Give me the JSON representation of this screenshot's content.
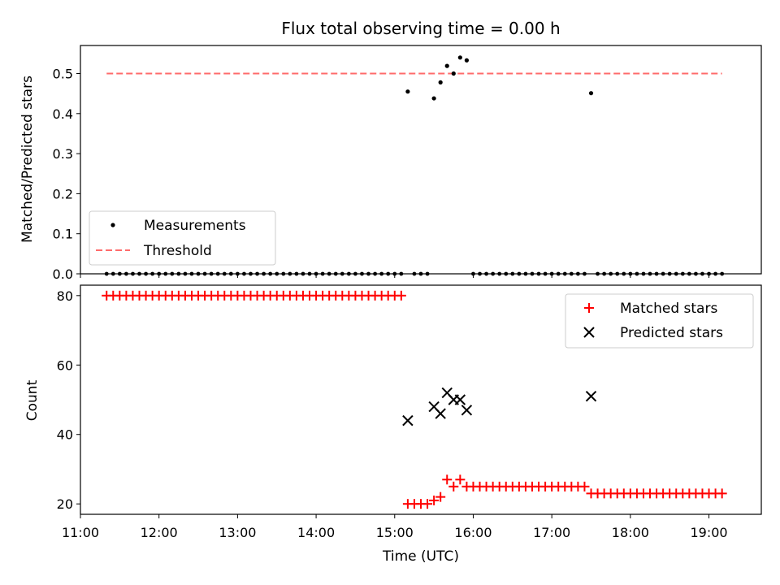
{
  "chart_data": [
    {
      "type": "scatter",
      "title": "Flux total observing time = 0.00 h",
      "xlabel": "",
      "ylabel": "Matched/Predicted stars",
      "xlim": [
        "11:00",
        "19:40"
      ],
      "ylim": [
        0,
        0.57
      ],
      "yticks": [
        "0.0",
        "0.1",
        "0.2",
        "0.3",
        "0.4",
        "0.5"
      ],
      "xticks_labels_shown": false,
      "legend": {
        "placement": "lower-left",
        "entries": [
          {
            "label": "Measurements",
            "marker": "dot",
            "color": "#000000"
          },
          {
            "label": "Threshold",
            "marker": "dashed-line",
            "color": "#ff6b6b"
          }
        ]
      },
      "series": [
        {
          "name": "Measurements",
          "marker": "dot",
          "color": "#000000",
          "points": [
            {
              "x": "15:10",
              "y": 0.455
            },
            {
              "x": "15:30",
              "y": 0.438
            },
            {
              "x": "15:35",
              "y": 0.478
            },
            {
              "x": "15:40",
              "y": 0.519
            },
            {
              "x": "15:45",
              "y": 0.5
            },
            {
              "x": "15:50",
              "y": 0.54
            },
            {
              "x": "15:55",
              "y": 0.533
            },
            {
              "x": "17:30",
              "y": 0.451
            }
          ],
          "zero_run_times": [
            [
              "11:20",
              "15:05",
              5
            ],
            [
              "15:15",
              "15:25",
              5
            ],
            [
              "16:00",
              "17:25",
              5
            ],
            [
              "17:35",
              "19:10",
              5
            ]
          ],
          "zero_value": 0.0
        },
        {
          "name": "Threshold",
          "type": "hline",
          "color": "#ff6b6b",
          "style": "dashed",
          "y": 0.5,
          "x": [
            "11:20",
            "19:10"
          ]
        }
      ]
    },
    {
      "type": "scatter",
      "title": "",
      "xlabel": "Time (UTC)",
      "ylabel": "Count",
      "xlim": [
        "11:00",
        "19:40"
      ],
      "ylim": [
        17,
        83
      ],
      "yticks": [
        "20",
        "40",
        "60",
        "80"
      ],
      "xticks": [
        "11:00",
        "12:00",
        "13:00",
        "14:00",
        "15:00",
        "16:00",
        "17:00",
        "18:00",
        "19:00"
      ],
      "legend": {
        "placement": "upper-right",
        "entries": [
          {
            "label": "Matched stars",
            "marker": "plus",
            "color": "#ff0000"
          },
          {
            "label": "Predicted stars",
            "marker": "x",
            "color": "#000000"
          }
        ]
      },
      "series": [
        {
          "name": "Matched stars",
          "marker": "plus",
          "color": "#ff0000",
          "runs": [
            {
              "from": "11:20",
              "to": "15:05",
              "step_min": 5,
              "y": 80
            },
            {
              "from": "15:10",
              "to": "15:25",
              "step_min": 5,
              "y": 20
            },
            {
              "from": "15:30",
              "to": "15:30",
              "step_min": 5,
              "y": 21
            },
            {
              "from": "15:35",
              "to": "15:35",
              "step_min": 5,
              "y": 22
            },
            {
              "from": "15:40",
              "to": "15:40",
              "step_min": 5,
              "y": 27
            },
            {
              "from": "15:45",
              "to": "15:45",
              "step_min": 5,
              "y": 25
            },
            {
              "from": "15:50",
              "to": "15:50",
              "step_min": 5,
              "y": 27
            },
            {
              "from": "15:55",
              "to": "17:25",
              "step_min": 5,
              "y": 25
            },
            {
              "from": "17:30",
              "to": "19:10",
              "step_min": 5,
              "y": 23
            }
          ]
        },
        {
          "name": "Predicted stars",
          "marker": "x",
          "color": "#000000",
          "points": [
            {
              "x": "15:10",
              "y": 44
            },
            {
              "x": "15:30",
              "y": 48
            },
            {
              "x": "15:35",
              "y": 46
            },
            {
              "x": "15:40",
              "y": 52
            },
            {
              "x": "15:45",
              "y": 50
            },
            {
              "x": "15:50",
              "y": 50
            },
            {
              "x": "15:55",
              "y": 47
            },
            {
              "x": "17:30",
              "y": 51
            }
          ]
        }
      ]
    }
  ]
}
